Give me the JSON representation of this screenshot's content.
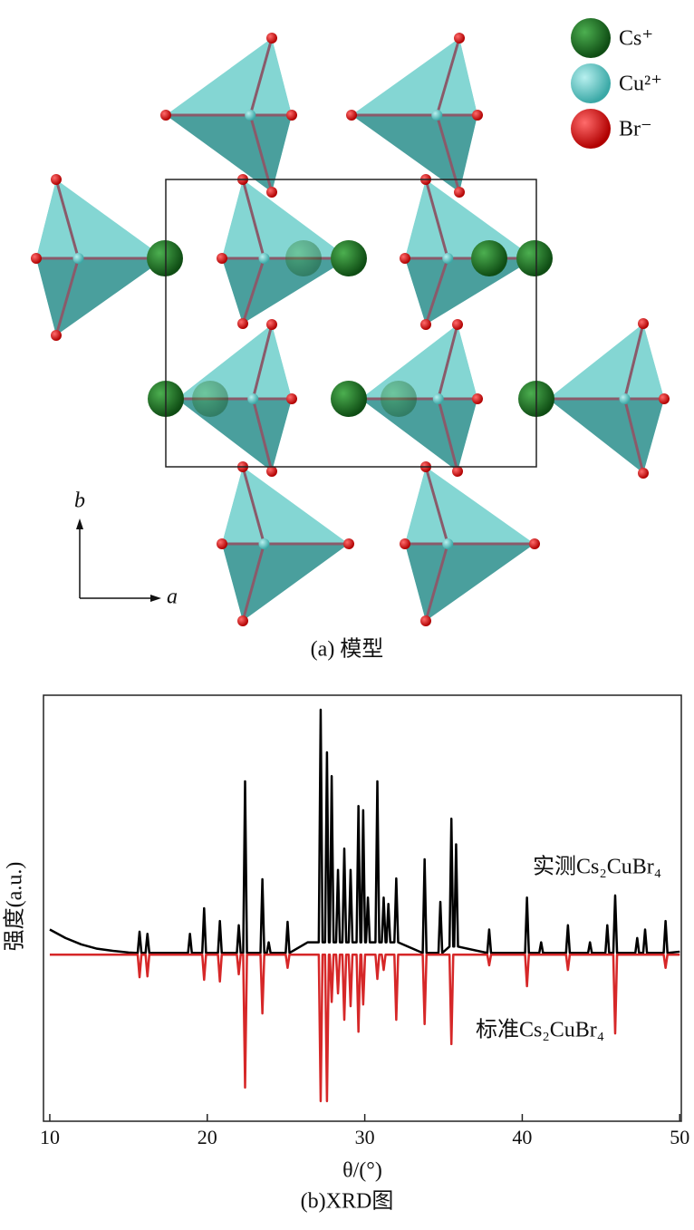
{
  "model": {
    "legend": [
      "Cs⁺",
      "Cu²⁺",
      "Br⁻"
    ],
    "axis_b": "b",
    "axis_a": "a",
    "caption": "(a) 模型"
  },
  "chart_data": {
    "type": "line",
    "caption": "(b)XRD图",
    "x_label": "θ/(°)",
    "y_label": "强度(a.u.)",
    "xlim": [
      9.6,
      50.1
    ],
    "ylim": [
      0,
      100
    ],
    "xticks": [
      10,
      20,
      30,
      40,
      50
    ],
    "tick_direction": "in",
    "x": [
      10,
      11,
      12,
      13,
      14,
      15,
      15.58,
      15.7,
      15.82,
      16.08,
      16.2,
      16.32,
      18.78,
      18.9,
      19.02,
      19.68,
      19.8,
      19.92,
      20.68,
      20.8,
      20.92,
      21.88,
      22.0,
      22.12,
      22.28,
      22.4,
      22.52,
      23.38,
      23.5,
      23.62,
      23.78,
      23.9,
      24.02,
      24.98,
      25.1,
      25.22,
      26.38,
      26.5,
      26.62,
      27.08,
      27.2,
      27.32,
      27.48,
      27.6,
      27.72,
      27.78,
      27.9,
      28.02,
      28.18,
      28.3,
      28.42,
      28.58,
      28.7,
      28.82,
      28.98,
      29.1,
      29.22,
      29.48,
      29.6,
      29.72,
      29.78,
      29.9,
      30.02,
      30.08,
      30.2,
      30.32,
      30.68,
      30.8,
      30.92,
      31.08,
      31.2,
      31.32,
      31.38,
      31.5,
      31.62,
      31.88,
      32.0,
      32.12,
      33.68,
      33.8,
      33.92,
      34.68,
      34.8,
      34.92,
      35.38,
      35.5,
      35.62,
      35.68,
      35.8,
      35.92,
      37.78,
      37.9,
      38.02,
      40.18,
      40.3,
      40.42,
      41.08,
      41.2,
      41.32,
      42.78,
      42.9,
      43.02,
      44.18,
      44.3,
      44.42,
      45.28,
      45.4,
      45.52,
      45.78,
      45.9,
      46.02,
      47.18,
      47.3,
      47.42,
      47.68,
      47.8,
      47.92,
      48.98,
      49.1,
      49.22,
      50
    ],
    "series": [
      {
        "name": "实测Cs₂CuBr₄",
        "color": "#000000",
        "values": [
          45,
          43,
          41.5,
          40.5,
          40,
          39.6,
          39.5,
          44.5,
          39.5,
          39.5,
          44,
          39.5,
          39.5,
          44,
          39.5,
          39.5,
          50,
          39.5,
          39.5,
          47,
          39.5,
          39.5,
          46,
          39.5,
          39.5,
          79.8,
          39.5,
          39.5,
          56.8,
          39.5,
          39.5,
          42,
          39.5,
          39.5,
          46.8,
          39.5,
          42,
          42,
          42,
          42,
          96.6,
          42,
          42,
          86.6,
          42,
          42,
          81,
          42,
          42,
          59,
          42,
          42,
          64,
          42,
          42,
          59,
          42,
          42,
          74,
          42,
          42,
          73,
          42,
          42,
          52.5,
          42,
          42,
          79.8,
          42,
          42,
          52.5,
          42,
          42,
          51,
          42,
          42,
          57,
          42,
          39.5,
          61.5,
          39.5,
          39.5,
          51.5,
          39.5,
          41,
          71,
          41,
          41,
          65,
          41,
          39.5,
          45,
          39.5,
          39.5,
          52.5,
          39.5,
          39.5,
          42,
          39.5,
          39.5,
          46,
          39.5,
          39.5,
          42,
          39.5,
          39.5,
          46,
          39.5,
          39.5,
          53,
          39.5,
          39.5,
          43,
          39.5,
          39.5,
          45,
          39.5,
          39.5,
          47,
          39.5,
          39.8
        ]
      },
      {
        "name": "标准Cs₂CuBr₄",
        "color": "#d62728",
        "values": [
          39.1,
          39.1,
          39.1,
          39.1,
          39.1,
          39.1,
          39.1,
          33.8,
          39.1,
          39.1,
          34,
          39.1,
          39.1,
          39.1,
          39.1,
          39.1,
          33.2,
          39.1,
          39.1,
          32.8,
          39.1,
          39.1,
          34.5,
          39.1,
          39.1,
          7.9,
          39.1,
          39.1,
          25.3,
          39.1,
          39.1,
          39.1,
          39.1,
          39.1,
          36,
          39.1,
          39.1,
          39.1,
          39.1,
          39.1,
          4.7,
          39.1,
          39.1,
          4.7,
          39.1,
          39.1,
          28,
          39.1,
          39.1,
          30,
          39.1,
          39.1,
          23.8,
          39.1,
          39.1,
          27,
          39.1,
          39.1,
          21,
          39.1,
          39.1,
          27.4,
          39.1,
          39.1,
          39.1,
          39.1,
          39.1,
          33.4,
          39.1,
          39.1,
          35.5,
          39.1,
          39.1,
          39.1,
          39.1,
          39.1,
          23.8,
          39.1,
          39.1,
          22.8,
          39.1,
          39.1,
          39.1,
          39.1,
          39.1,
          18.1,
          39.1,
          39.1,
          39.1,
          39.1,
          39.1,
          36.6,
          39.1,
          39.1,
          31.7,
          39.1,
          39.1,
          39.1,
          39.1,
          39.1,
          35.5,
          39.1,
          39.1,
          39.1,
          39.1,
          39.1,
          39.1,
          39.1,
          39.1,
          20.6,
          39.1,
          39.1,
          39.1,
          39.1,
          39.1,
          39.1,
          39.1,
          39.1,
          36,
          39.1,
          39.1
        ]
      }
    ]
  }
}
